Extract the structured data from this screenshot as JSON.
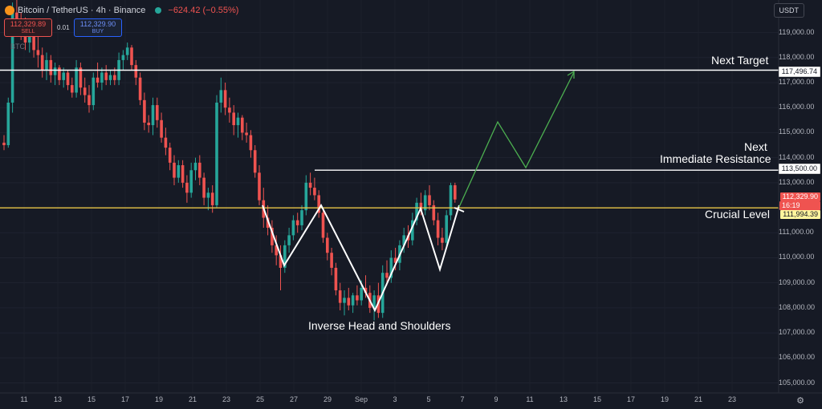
{
  "header": {
    "symbol": "Bitcoin / TetherUS · 4h · Binance",
    "change": "−624.42 (−0.55%)"
  },
  "trade": {
    "sell_price": "112,329.89",
    "sell_label": "SELL",
    "spread": "0.01",
    "buy_price": "112,329.90",
    "buy_label": "BUY"
  },
  "sub_label": "BTC",
  "currency_button": "USDT",
  "price_axis": {
    "ticks": [
      "119,000.00",
      "118,000.00",
      "117,000.00",
      "116,000.00",
      "115,000.00",
      "114,000.00",
      "113,000.00",
      "112,000.00",
      "111,000.00",
      "110,000.00",
      "109,000.00",
      "108,000.00",
      "107,000.00",
      "106,000.00",
      "105,000.00"
    ]
  },
  "time_axis": {
    "ticks": [
      "11",
      "13",
      "15",
      "17",
      "19",
      "21",
      "23",
      "25",
      "27",
      "29",
      "Sep",
      "3",
      "5",
      "7",
      "9",
      "11",
      "13",
      "15",
      "17",
      "19",
      "21",
      "23"
    ]
  },
  "price_tags": {
    "next_target": "117,496.74",
    "immediate_resistance": "113,500.00",
    "current_price": "112,329.90",
    "countdown": "16:19",
    "crucial_level": "111,994.39"
  },
  "annotations": {
    "next_target": "Next Target",
    "resistance_line1": "Next",
    "resistance_line2": "Immediate Resistance",
    "crucial_level": "Crucial Level",
    "pattern": "Inverse Head and Shoulders"
  },
  "colors": {
    "background": "#161a25",
    "up": "#26a69a",
    "down": "#ef5350",
    "crucial_line": "#e8c547",
    "projection": "#4caf50"
  },
  "chart_data": {
    "type": "candlestick",
    "symbol": "Bitcoin / TetherUS",
    "interval": "4h",
    "exchange": "Binance",
    "ylim": [
      104600,
      120300
    ],
    "levels": [
      {
        "name": "Next Target",
        "price": 117496.74
      },
      {
        "name": "Next Immediate Resistance",
        "price": 113500.0
      },
      {
        "name": "Crucial Level",
        "price": 111994.39
      }
    ],
    "candles": [
      {
        "o": 114600,
        "h": 114900,
        "l": 114300,
        "c": 114500
      },
      {
        "o": 114500,
        "h": 116400,
        "l": 114400,
        "c": 116200
      },
      {
        "o": 116200,
        "h": 120200,
        "l": 115800,
        "c": 119800
      },
      {
        "o": 119800,
        "h": 120300,
        "l": 119000,
        "c": 119500
      },
      {
        "o": 119500,
        "h": 119800,
        "l": 118700,
        "c": 119100
      },
      {
        "o": 119100,
        "h": 119600,
        "l": 118300,
        "c": 118600
      },
      {
        "o": 118600,
        "h": 119400,
        "l": 118200,
        "c": 119000
      },
      {
        "o": 119000,
        "h": 119500,
        "l": 118000,
        "c": 118300
      },
      {
        "o": 118300,
        "h": 118900,
        "l": 117600,
        "c": 118100
      },
      {
        "o": 118100,
        "h": 118400,
        "l": 117200,
        "c": 117500
      },
      {
        "o": 117500,
        "h": 118200,
        "l": 117100,
        "c": 117900
      },
      {
        "o": 117900,
        "h": 118100,
        "l": 117000,
        "c": 117300
      },
      {
        "o": 117300,
        "h": 117800,
        "l": 116900,
        "c": 117600
      },
      {
        "o": 117600,
        "h": 117700,
        "l": 116900,
        "c": 117100
      },
      {
        "o": 117100,
        "h": 117600,
        "l": 116800,
        "c": 117400
      },
      {
        "o": 117400,
        "h": 117500,
        "l": 116700,
        "c": 116900
      },
      {
        "o": 116900,
        "h": 117200,
        "l": 116400,
        "c": 116600
      },
      {
        "o": 116600,
        "h": 117900,
        "l": 116400,
        "c": 117600
      },
      {
        "o": 117600,
        "h": 117800,
        "l": 116500,
        "c": 116800
      },
      {
        "o": 116800,
        "h": 117200,
        "l": 116200,
        "c": 116500
      },
      {
        "o": 116500,
        "h": 116900,
        "l": 115800,
        "c": 116100
      },
      {
        "o": 116100,
        "h": 117400,
        "l": 115900,
        "c": 117200
      },
      {
        "o": 117200,
        "h": 117800,
        "l": 116800,
        "c": 117000
      },
      {
        "o": 117000,
        "h": 117600,
        "l": 116700,
        "c": 117400
      },
      {
        "o": 117400,
        "h": 117700,
        "l": 116900,
        "c": 117100
      },
      {
        "o": 117100,
        "h": 117500,
        "l": 116900,
        "c": 117300
      },
      {
        "o": 117300,
        "h": 117600,
        "l": 116900,
        "c": 117100
      },
      {
        "o": 117100,
        "h": 118200,
        "l": 116900,
        "c": 117900
      },
      {
        "o": 117900,
        "h": 118300,
        "l": 117500,
        "c": 118100
      },
      {
        "o": 118100,
        "h": 118600,
        "l": 117900,
        "c": 118400
      },
      {
        "o": 118400,
        "h": 118500,
        "l": 117500,
        "c": 117700
      },
      {
        "o": 117700,
        "h": 117900,
        "l": 116900,
        "c": 117200
      },
      {
        "o": 117200,
        "h": 117400,
        "l": 116100,
        "c": 116300
      },
      {
        "o": 116300,
        "h": 116600,
        "l": 115100,
        "c": 115400
      },
      {
        "o": 115400,
        "h": 115700,
        "l": 115000,
        "c": 115300
      },
      {
        "o": 115300,
        "h": 116400,
        "l": 114900,
        "c": 116100
      },
      {
        "o": 116100,
        "h": 116400,
        "l": 115200,
        "c": 115500
      },
      {
        "o": 115500,
        "h": 115800,
        "l": 114600,
        "c": 114800
      },
      {
        "o": 114800,
        "h": 115200,
        "l": 114100,
        "c": 114400
      },
      {
        "o": 114400,
        "h": 114600,
        "l": 113500,
        "c": 113800
      },
      {
        "o": 113800,
        "h": 114100,
        "l": 112900,
        "c": 113200
      },
      {
        "o": 113200,
        "h": 113900,
        "l": 113000,
        "c": 113700
      },
      {
        "o": 113700,
        "h": 113900,
        "l": 112800,
        "c": 113000
      },
      {
        "o": 113000,
        "h": 113300,
        "l": 112200,
        "c": 112600
      },
      {
        "o": 112600,
        "h": 113800,
        "l": 112400,
        "c": 113500
      },
      {
        "o": 113500,
        "h": 114000,
        "l": 113100,
        "c": 113800
      },
      {
        "o": 113800,
        "h": 114100,
        "l": 112900,
        "c": 113200
      },
      {
        "o": 113200,
        "h": 113400,
        "l": 112100,
        "c": 112400
      },
      {
        "o": 112400,
        "h": 112800,
        "l": 111900,
        "c": 112600
      },
      {
        "o": 112600,
        "h": 112900,
        "l": 111800,
        "c": 112100
      },
      {
        "o": 112100,
        "h": 116500,
        "l": 112000,
        "c": 116200
      },
      {
        "o": 116200,
        "h": 117200,
        "l": 115800,
        "c": 116700
      },
      {
        "o": 116700,
        "h": 117000,
        "l": 115700,
        "c": 116000
      },
      {
        "o": 116000,
        "h": 116400,
        "l": 115400,
        "c": 115800
      },
      {
        "o": 115800,
        "h": 116100,
        "l": 114900,
        "c": 115300
      },
      {
        "o": 115300,
        "h": 115800,
        "l": 114800,
        "c": 115600
      },
      {
        "o": 115600,
        "h": 115700,
        "l": 114700,
        "c": 115000
      },
      {
        "o": 115000,
        "h": 115400,
        "l": 114600,
        "c": 114900
      },
      {
        "o": 114900,
        "h": 115100,
        "l": 114000,
        "c": 114300
      },
      {
        "o": 114300,
        "h": 114500,
        "l": 113200,
        "c": 113400
      },
      {
        "o": 113400,
        "h": 113700,
        "l": 112100,
        "c": 112300
      },
      {
        "o": 112300,
        "h": 112800,
        "l": 111200,
        "c": 111600
      },
      {
        "o": 111600,
        "h": 112100,
        "l": 110900,
        "c": 111200
      },
      {
        "o": 111200,
        "h": 111500,
        "l": 110200,
        "c": 110500
      },
      {
        "o": 110500,
        "h": 110900,
        "l": 109700,
        "c": 110100
      },
      {
        "o": 110100,
        "h": 110500,
        "l": 108700,
        "c": 109600
      },
      {
        "o": 109600,
        "h": 110700,
        "l": 109400,
        "c": 110500
      },
      {
        "o": 110500,
        "h": 111200,
        "l": 110200,
        "c": 110900
      },
      {
        "o": 110900,
        "h": 111700,
        "l": 110700,
        "c": 111500
      },
      {
        "o": 111500,
        "h": 111800,
        "l": 111000,
        "c": 111300
      },
      {
        "o": 111300,
        "h": 112100,
        "l": 111100,
        "c": 111900
      },
      {
        "o": 111900,
        "h": 113300,
        "l": 111700,
        "c": 113000
      },
      {
        "o": 113000,
        "h": 113400,
        "l": 112500,
        "c": 112800
      },
      {
        "o": 112800,
        "h": 113200,
        "l": 112300,
        "c": 112500
      },
      {
        "o": 112500,
        "h": 112700,
        "l": 111600,
        "c": 111800
      },
      {
        "o": 111800,
        "h": 112000,
        "l": 110600,
        "c": 110800
      },
      {
        "o": 110800,
        "h": 111000,
        "l": 109900,
        "c": 110200
      },
      {
        "o": 110200,
        "h": 110400,
        "l": 109300,
        "c": 109600
      },
      {
        "o": 109600,
        "h": 109800,
        "l": 108500,
        "c": 108700
      },
      {
        "o": 108700,
        "h": 109000,
        "l": 107900,
        "c": 108200
      },
      {
        "o": 108200,
        "h": 108700,
        "l": 107700,
        "c": 108400
      },
      {
        "o": 108400,
        "h": 108800,
        "l": 107900,
        "c": 108100
      },
      {
        "o": 108100,
        "h": 108600,
        "l": 107800,
        "c": 108500
      },
      {
        "o": 108500,
        "h": 108900,
        "l": 108100,
        "c": 108300
      },
      {
        "o": 108300,
        "h": 109100,
        "l": 108100,
        "c": 108800
      },
      {
        "o": 108800,
        "h": 109300,
        "l": 108400,
        "c": 108600
      },
      {
        "o": 108600,
        "h": 108900,
        "l": 107800,
        "c": 108000
      },
      {
        "o": 108000,
        "h": 108700,
        "l": 107500,
        "c": 108500
      },
      {
        "o": 108500,
        "h": 109000,
        "l": 107600,
        "c": 107800
      },
      {
        "o": 107800,
        "h": 109700,
        "l": 107600,
        "c": 109400
      },
      {
        "o": 109400,
        "h": 109900,
        "l": 108900,
        "c": 109200
      },
      {
        "o": 109200,
        "h": 110300,
        "l": 109000,
        "c": 110000
      },
      {
        "o": 110000,
        "h": 110400,
        "l": 109500,
        "c": 109800
      },
      {
        "o": 109800,
        "h": 110700,
        "l": 109500,
        "c": 110500
      },
      {
        "o": 110500,
        "h": 111200,
        "l": 110200,
        "c": 110900
      },
      {
        "o": 110900,
        "h": 111300,
        "l": 110400,
        "c": 110700
      },
      {
        "o": 110700,
        "h": 111800,
        "l": 110500,
        "c": 111500
      },
      {
        "o": 111500,
        "h": 112400,
        "l": 111300,
        "c": 112200
      },
      {
        "o": 112200,
        "h": 112600,
        "l": 111700,
        "c": 111900
      },
      {
        "o": 111900,
        "h": 112700,
        "l": 111700,
        "c": 112500
      },
      {
        "o": 112500,
        "h": 112900,
        "l": 111900,
        "c": 112100
      },
      {
        "o": 112100,
        "h": 112300,
        "l": 111300,
        "c": 111500
      },
      {
        "o": 111500,
        "h": 111800,
        "l": 110500,
        "c": 110800
      },
      {
        "o": 110800,
        "h": 111200,
        "l": 110300,
        "c": 110600
      },
      {
        "o": 110600,
        "h": 111900,
        "l": 110400,
        "c": 111700
      },
      {
        "o": 111700,
        "h": 113000,
        "l": 111500,
        "c": 112900
      },
      {
        "o": 112900,
        "h": 113000,
        "l": 112200,
        "c": 112330
      }
    ]
  }
}
